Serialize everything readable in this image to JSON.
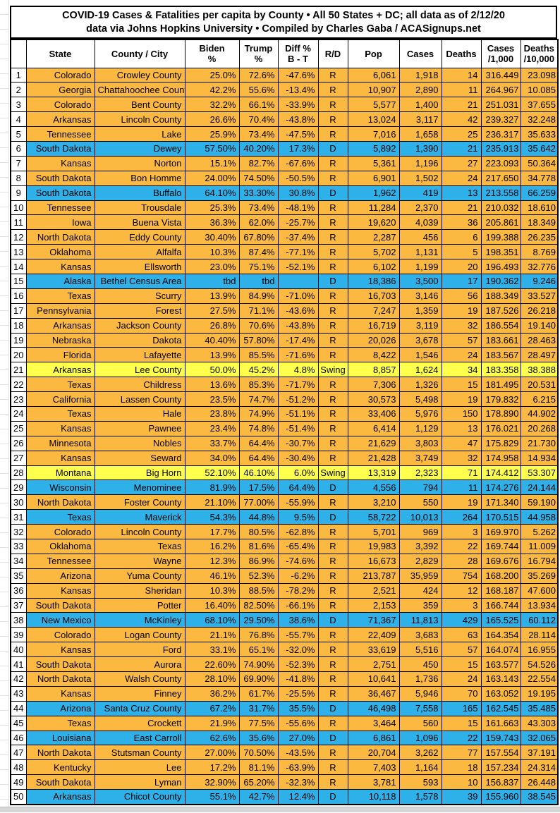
{
  "title": {
    "line1": "COVID-19 Cases & Fatalities per capita by County • All 50 States + DC; all data as of 2/12/20",
    "line2": "data via Johns Hopkins University • Compiled by Charles Gaba / ACASignups.net"
  },
  "colors": {
    "republican_row": "#FBB942",
    "democrat_row": "#2EB0E8",
    "swing_row": "#FFFF4D",
    "grid_border": "#000000"
  },
  "chart_data": {
    "type": "table",
    "title": "COVID-19 Cases & Fatalities per capita by County • All 50 States + DC; all data as of 2/12/20 — data via Johns Hopkins University • Compiled by Charles Gaba / ACASignups.net",
    "party_colors": {
      "R": "#FBB942",
      "D": "#2EB0E8",
      "Swing": "#FFFF4D"
    },
    "columns": [
      {
        "key": "rank",
        "label": ""
      },
      {
        "key": "state",
        "label": "State"
      },
      {
        "key": "county",
        "label": "County / City"
      },
      {
        "key": "biden",
        "label": "Biden\n%"
      },
      {
        "key": "trump",
        "label": "Trump\n%"
      },
      {
        "key": "diff",
        "label": "Diff %\nB - T"
      },
      {
        "key": "rd",
        "label": "R/D"
      },
      {
        "key": "pop",
        "label": "Pop"
      },
      {
        "key": "cases",
        "label": "Cases"
      },
      {
        "key": "deaths",
        "label": "Deaths"
      },
      {
        "key": "cases_per_1000",
        "label": "Cases\n/1,000"
      },
      {
        "key": "deaths_per_10000",
        "label": "Deaths\n/10,000"
      }
    ],
    "rows": [
      {
        "rank": "1",
        "state": "Colorado",
        "county": "Crowley County",
        "biden": "25.0%",
        "trump": "72.6%",
        "diff": "-47.6%",
        "rd": "R",
        "pop": "6,061",
        "cases": "1,918",
        "deaths": "14",
        "cases_per_1000": "316.449",
        "deaths_per_10000": "23.098",
        "party": "R"
      },
      {
        "rank": "2",
        "state": "Georgia",
        "county": "Chattahoochee County",
        "biden": "42.2%",
        "trump": "55.6%",
        "diff": "-13.4%",
        "rd": "R",
        "pop": "10,907",
        "cases": "2,890",
        "deaths": "11",
        "cases_per_1000": "264.967",
        "deaths_per_10000": "10.085",
        "party": "R"
      },
      {
        "rank": "3",
        "state": "Colorado",
        "county": "Bent County",
        "biden": "32.2%",
        "trump": "66.1%",
        "diff": "-33.9%",
        "rd": "R",
        "pop": "5,577",
        "cases": "1,400",
        "deaths": "21",
        "cases_per_1000": "251.031",
        "deaths_per_10000": "37.655",
        "party": "R"
      },
      {
        "rank": "4",
        "state": "Arkansas",
        "county": "Lincoln County",
        "biden": "26.6%",
        "trump": "70.4%",
        "diff": "-43.8%",
        "rd": "R",
        "pop": "13,024",
        "cases": "3,117",
        "deaths": "42",
        "cases_per_1000": "239.327",
        "deaths_per_10000": "32.248",
        "party": "R"
      },
      {
        "rank": "5",
        "state": "Tennessee",
        "county": "Lake",
        "biden": "25.9%",
        "trump": "73.4%",
        "diff": "-47.5%",
        "rd": "R",
        "pop": "7,016",
        "cases": "1,658",
        "deaths": "25",
        "cases_per_1000": "236.317",
        "deaths_per_10000": "35.633",
        "party": "R"
      },
      {
        "rank": "6",
        "state": "South Dakota",
        "county": "Dewey",
        "biden": "57.50%",
        "trump": "40.20%",
        "diff": "17.3%",
        "rd": "D",
        "pop": "5,892",
        "cases": "1,390",
        "deaths": "21",
        "cases_per_1000": "235.913",
        "deaths_per_10000": "35.642",
        "party": "D"
      },
      {
        "rank": "7",
        "state": "Kansas",
        "county": "Norton",
        "biden": "15.1%",
        "trump": "82.7%",
        "diff": "-67.6%",
        "rd": "R",
        "pop": "5,361",
        "cases": "1,196",
        "deaths": "27",
        "cases_per_1000": "223.093",
        "deaths_per_10000": "50.364",
        "party": "R"
      },
      {
        "rank": "8",
        "state": "South Dakota",
        "county": "Bon Homme",
        "biden": "24.00%",
        "trump": "74.50%",
        "diff": "-50.5%",
        "rd": "R",
        "pop": "6,901",
        "cases": "1,502",
        "deaths": "24",
        "cases_per_1000": "217.650",
        "deaths_per_10000": "34.778",
        "party": "R"
      },
      {
        "rank": "9",
        "state": "South Dakota",
        "county": "Buffalo",
        "biden": "64.10%",
        "trump": "33.30%",
        "diff": "30.8%",
        "rd": "D",
        "pop": "1,962",
        "cases": "419",
        "deaths": "13",
        "cases_per_1000": "213.558",
        "deaths_per_10000": "66.259",
        "party": "D"
      },
      {
        "rank": "10",
        "state": "Tennessee",
        "county": "Trousdale",
        "biden": "25.3%",
        "trump": "73.4%",
        "diff": "-48.1%",
        "rd": "R",
        "pop": "11,284",
        "cases": "2,370",
        "deaths": "21",
        "cases_per_1000": "210.032",
        "deaths_per_10000": "18.610",
        "party": "R"
      },
      {
        "rank": "11",
        "state": "Iowa",
        "county": "Buena Vista",
        "biden": "36.3%",
        "trump": "62.0%",
        "diff": "-25.7%",
        "rd": "R",
        "pop": "19,620",
        "cases": "4,039",
        "deaths": "36",
        "cases_per_1000": "205.861",
        "deaths_per_10000": "18.349",
        "party": "R"
      },
      {
        "rank": "12",
        "state": "North Dakota",
        "county": "Eddy County",
        "biden": "30.40%",
        "trump": "67.80%",
        "diff": "-37.4%",
        "rd": "R",
        "pop": "2,287",
        "cases": "456",
        "deaths": "6",
        "cases_per_1000": "199.388",
        "deaths_per_10000": "26.235",
        "party": "R"
      },
      {
        "rank": "13",
        "state": "Oklahoma",
        "county": "Alfalfa",
        "biden": "10.3%",
        "trump": "87.4%",
        "diff": "-77.1%",
        "rd": "R",
        "pop": "5,702",
        "cases": "1,131",
        "deaths": "5",
        "cases_per_1000": "198.351",
        "deaths_per_10000": "8.769",
        "party": "R"
      },
      {
        "rank": "14",
        "state": "Kansas",
        "county": "Ellsworth",
        "biden": "23.0%",
        "trump": "75.1%",
        "diff": "-52.1%",
        "rd": "R",
        "pop": "6,102",
        "cases": "1,199",
        "deaths": "20",
        "cases_per_1000": "196.493",
        "deaths_per_10000": "32.776",
        "party": "R"
      },
      {
        "rank": "15",
        "state": "Alaska",
        "county": "Bethel Census Area",
        "biden": "tbd",
        "trump": "tbd",
        "diff": "",
        "rd": "D",
        "pop": "18,386",
        "cases": "3,500",
        "deaths": "17",
        "cases_per_1000": "190.362",
        "deaths_per_10000": "9.246",
        "party": "D"
      },
      {
        "rank": "16",
        "state": "Texas",
        "county": "Scurry",
        "biden": "13.9%",
        "trump": "84.9%",
        "diff": "-71.0%",
        "rd": "R",
        "pop": "16,703",
        "cases": "3,146",
        "deaths": "56",
        "cases_per_1000": "188.349",
        "deaths_per_10000": "33.527",
        "party": "R"
      },
      {
        "rank": "17",
        "state": "Pennsylvania",
        "county": "Forest",
        "biden": "27.5%",
        "trump": "71.1%",
        "diff": "-43.6%",
        "rd": "R",
        "pop": "7,247",
        "cases": "1,359",
        "deaths": "19",
        "cases_per_1000": "187.526",
        "deaths_per_10000": "26.218",
        "party": "R"
      },
      {
        "rank": "18",
        "state": "Arkansas",
        "county": "Jackson County",
        "biden": "26.8%",
        "trump": "70.6%",
        "diff": "-43.8%",
        "rd": "R",
        "pop": "16,719",
        "cases": "3,119",
        "deaths": "32",
        "cases_per_1000": "186.554",
        "deaths_per_10000": "19.140",
        "party": "R"
      },
      {
        "rank": "19",
        "state": "Nebraska",
        "county": "Dakota",
        "biden": "40.40%",
        "trump": "57.80%",
        "diff": "-17.4%",
        "rd": "R",
        "pop": "20,026",
        "cases": "3,678",
        "deaths": "57",
        "cases_per_1000": "183.661",
        "deaths_per_10000": "28.463",
        "party": "R"
      },
      {
        "rank": "20",
        "state": "Florida",
        "county": "Lafayette",
        "biden": "13.9%",
        "trump": "85.5%",
        "diff": "-71.6%",
        "rd": "R",
        "pop": "8,422",
        "cases": "1,546",
        "deaths": "24",
        "cases_per_1000": "183.567",
        "deaths_per_10000": "28.497",
        "party": "R"
      },
      {
        "rank": "21",
        "state": "Arkansas",
        "county": "Lee County",
        "biden": "50.0%",
        "trump": "45.2%",
        "diff": "4.8%",
        "rd": "Swing",
        "pop": "8,857",
        "cases": "1,624",
        "deaths": "34",
        "cases_per_1000": "183.358",
        "deaths_per_10000": "38.388",
        "party": "Swing"
      },
      {
        "rank": "22",
        "state": "Texas",
        "county": "Childress",
        "biden": "13.6%",
        "trump": "85.3%",
        "diff": "-71.7%",
        "rd": "R",
        "pop": "7,306",
        "cases": "1,326",
        "deaths": "15",
        "cases_per_1000": "181.495",
        "deaths_per_10000": "20.531",
        "party": "R"
      },
      {
        "rank": "23",
        "state": "California",
        "county": "Lassen County",
        "biden": "23.5%",
        "trump": "74.7%",
        "diff": "-51.2%",
        "rd": "R",
        "pop": "30,573",
        "cases": "5,498",
        "deaths": "19",
        "cases_per_1000": "179.832",
        "deaths_per_10000": "6.215",
        "party": "R"
      },
      {
        "rank": "24",
        "state": "Texas",
        "county": "Hale",
        "biden": "23.8%",
        "trump": "74.9%",
        "diff": "-51.1%",
        "rd": "R",
        "pop": "33,406",
        "cases": "5,976",
        "deaths": "150",
        "cases_per_1000": "178.890",
        "deaths_per_10000": "44.902",
        "party": "R"
      },
      {
        "rank": "25",
        "state": "Kansas",
        "county": "Pawnee",
        "biden": "23.4%",
        "trump": "74.8%",
        "diff": "-51.4%",
        "rd": "R",
        "pop": "6,414",
        "cases": "1,129",
        "deaths": "13",
        "cases_per_1000": "176.021",
        "deaths_per_10000": "20.268",
        "party": "R"
      },
      {
        "rank": "26",
        "state": "Minnesota",
        "county": "Nobles",
        "biden": "33.7%",
        "trump": "64.4%",
        "diff": "-30.7%",
        "rd": "R",
        "pop": "21,629",
        "cases": "3,803",
        "deaths": "47",
        "cases_per_1000": "175.829",
        "deaths_per_10000": "21.730",
        "party": "R"
      },
      {
        "rank": "27",
        "state": "Kansas",
        "county": "Seward",
        "biden": "34.0%",
        "trump": "64.4%",
        "diff": "-30.4%",
        "rd": "R",
        "pop": "21,428",
        "cases": "3,749",
        "deaths": "32",
        "cases_per_1000": "174.958",
        "deaths_per_10000": "14.934",
        "party": "R"
      },
      {
        "rank": "28",
        "state": "Montana",
        "county": "Big Horn",
        "biden": "52.10%",
        "trump": "46.10%",
        "diff": "6.0%",
        "rd": "Swing",
        "pop": "13,319",
        "cases": "2,323",
        "deaths": "71",
        "cases_per_1000": "174.412",
        "deaths_per_10000": "53.307",
        "party": "Swing"
      },
      {
        "rank": "29",
        "state": "Wisconsin",
        "county": "Menominee",
        "biden": "81.9%",
        "trump": "17.5%",
        "diff": "64.4%",
        "rd": "D",
        "pop": "4,556",
        "cases": "794",
        "deaths": "11",
        "cases_per_1000": "174.276",
        "deaths_per_10000": "24.144",
        "party": "D"
      },
      {
        "rank": "30",
        "state": "North Dakota",
        "county": "Foster County",
        "biden": "21.10%",
        "trump": "77.00%",
        "diff": "-55.9%",
        "rd": "R",
        "pop": "3,210",
        "cases": "550",
        "deaths": "19",
        "cases_per_1000": "171.340",
        "deaths_per_10000": "59.190",
        "party": "R"
      },
      {
        "rank": "31",
        "state": "Texas",
        "county": "Maverick",
        "biden": "54.3%",
        "trump": "44.8%",
        "diff": "9.5%",
        "rd": "D",
        "pop": "58,722",
        "cases": "10,013",
        "deaths": "264",
        "cases_per_1000": "170.515",
        "deaths_per_10000": "44.958",
        "party": "D"
      },
      {
        "rank": "32",
        "state": "Colorado",
        "county": "Lincoln County",
        "biden": "17.7%",
        "trump": "80.5%",
        "diff": "-62.8%",
        "rd": "R",
        "pop": "5,701",
        "cases": "969",
        "deaths": "3",
        "cases_per_1000": "169.970",
        "deaths_per_10000": "5.262",
        "party": "R"
      },
      {
        "rank": "33",
        "state": "Oklahoma",
        "county": "Texas",
        "biden": "16.2%",
        "trump": "81.6%",
        "diff": "-65.4%",
        "rd": "R",
        "pop": "19,983",
        "cases": "3,392",
        "deaths": "22",
        "cases_per_1000": "169.744",
        "deaths_per_10000": "11.009",
        "party": "R"
      },
      {
        "rank": "34",
        "state": "Tennessee",
        "county": "Wayne",
        "biden": "12.3%",
        "trump": "86.9%",
        "diff": "-74.6%",
        "rd": "R",
        "pop": "16,673",
        "cases": "2,829",
        "deaths": "28",
        "cases_per_1000": "169.676",
        "deaths_per_10000": "16.794",
        "party": "R"
      },
      {
        "rank": "35",
        "state": "Arizona",
        "county": "Yuma County",
        "biden": "46.1%",
        "trump": "52.3%",
        "diff": "-6.2%",
        "rd": "R",
        "pop": "213,787",
        "cases": "35,959",
        "deaths": "754",
        "cases_per_1000": "168.200",
        "deaths_per_10000": "35.269",
        "party": "R"
      },
      {
        "rank": "36",
        "state": "Kansas",
        "county": "Sheridan",
        "biden": "10.3%",
        "trump": "88.5%",
        "diff": "-78.2%",
        "rd": "R",
        "pop": "2,521",
        "cases": "424",
        "deaths": "12",
        "cases_per_1000": "168.187",
        "deaths_per_10000": "47.600",
        "party": "R"
      },
      {
        "rank": "37",
        "state": "South Dakota",
        "county": "Potter",
        "biden": "16.40%",
        "trump": "82.50%",
        "diff": "-66.1%",
        "rd": "R",
        "pop": "2,153",
        "cases": "359",
        "deaths": "3",
        "cases_per_1000": "166.744",
        "deaths_per_10000": "13.934",
        "party": "R"
      },
      {
        "rank": "38",
        "state": "New Mexico",
        "county": "McKinley",
        "biden": "68.10%",
        "trump": "29.50%",
        "diff": "38.6%",
        "rd": "D",
        "pop": "71,367",
        "cases": "11,813",
        "deaths": "429",
        "cases_per_1000": "165.525",
        "deaths_per_10000": "60.112",
        "party": "D"
      },
      {
        "rank": "39",
        "state": "Colorado",
        "county": "Logan County",
        "biden": "21.1%",
        "trump": "76.8%",
        "diff": "-55.7%",
        "rd": "R",
        "pop": "22,409",
        "cases": "3,683",
        "deaths": "63",
        "cases_per_1000": "164.354",
        "deaths_per_10000": "28.114",
        "party": "R"
      },
      {
        "rank": "40",
        "state": "Kansas",
        "county": "Ford",
        "biden": "33.1%",
        "trump": "65.1%",
        "diff": "-32.0%",
        "rd": "R",
        "pop": "33,619",
        "cases": "5,516",
        "deaths": "57",
        "cases_per_1000": "164.074",
        "deaths_per_10000": "16.955",
        "party": "R"
      },
      {
        "rank": "41",
        "state": "South Dakota",
        "county": "Aurora",
        "biden": "22.60%",
        "trump": "74.90%",
        "diff": "-52.3%",
        "rd": "R",
        "pop": "2,751",
        "cases": "450",
        "deaths": "15",
        "cases_per_1000": "163.577",
        "deaths_per_10000": "54.526",
        "party": "R"
      },
      {
        "rank": "42",
        "state": "North Dakota",
        "county": "Walsh County",
        "biden": "28.10%",
        "trump": "69.90%",
        "diff": "-41.8%",
        "rd": "R",
        "pop": "10,641",
        "cases": "1,736",
        "deaths": "24",
        "cases_per_1000": "163.143",
        "deaths_per_10000": "22.554",
        "party": "R"
      },
      {
        "rank": "43",
        "state": "Kansas",
        "county": "Finney",
        "biden": "36.2%",
        "trump": "61.7%",
        "diff": "-25.5%",
        "rd": "R",
        "pop": "36,467",
        "cases": "5,946",
        "deaths": "70",
        "cases_per_1000": "163.052",
        "deaths_per_10000": "19.195",
        "party": "R"
      },
      {
        "rank": "44",
        "state": "Arizona",
        "county": "Santa Cruz County",
        "biden": "67.2%",
        "trump": "31.7%",
        "diff": "35.5%",
        "rd": "D",
        "pop": "46,498",
        "cases": "7,558",
        "deaths": "165",
        "cases_per_1000": "162.545",
        "deaths_per_10000": "35.485",
        "party": "D"
      },
      {
        "rank": "45",
        "state": "Texas",
        "county": "Crockett",
        "biden": "21.9%",
        "trump": "77.5%",
        "diff": "-55.6%",
        "rd": "R",
        "pop": "3,464",
        "cases": "560",
        "deaths": "15",
        "cases_per_1000": "161.663",
        "deaths_per_10000": "43.303",
        "party": "R"
      },
      {
        "rank": "46",
        "state": "Louisiana",
        "county": "East Carroll",
        "biden": "62.6%",
        "trump": "35.6%",
        "diff": "27.0%",
        "rd": "D",
        "pop": "6,861",
        "cases": "1,096",
        "deaths": "22",
        "cases_per_1000": "159.743",
        "deaths_per_10000": "32.065",
        "party": "D"
      },
      {
        "rank": "47",
        "state": "North Dakota",
        "county": "Stutsman County",
        "biden": "27.00%",
        "trump": "70.50%",
        "diff": "-43.5%",
        "rd": "R",
        "pop": "20,704",
        "cases": "3,262",
        "deaths": "77",
        "cases_per_1000": "157.554",
        "deaths_per_10000": "37.191",
        "party": "R"
      },
      {
        "rank": "48",
        "state": "Kentucky",
        "county": "Lee",
        "biden": "17.2%",
        "trump": "81.1%",
        "diff": "-63.9%",
        "rd": "R",
        "pop": "7,403",
        "cases": "1,164",
        "deaths": "18",
        "cases_per_1000": "157.234",
        "deaths_per_10000": "24.314",
        "party": "R"
      },
      {
        "rank": "49",
        "state": "South Dakota",
        "county": "Lyman",
        "biden": "32.90%",
        "trump": "65.20%",
        "diff": "-32.3%",
        "rd": "R",
        "pop": "3,781",
        "cases": "593",
        "deaths": "10",
        "cases_per_1000": "156.837",
        "deaths_per_10000": "26.448",
        "party": "R"
      },
      {
        "rank": "50",
        "state": "Arkansas",
        "county": "Chicot County",
        "biden": "55.1%",
        "trump": "42.7%",
        "diff": "12.4%",
        "rd": "D",
        "pop": "10,118",
        "cases": "1,578",
        "deaths": "39",
        "cases_per_1000": "155.960",
        "deaths_per_10000": "38.545",
        "party": "D"
      }
    ]
  }
}
